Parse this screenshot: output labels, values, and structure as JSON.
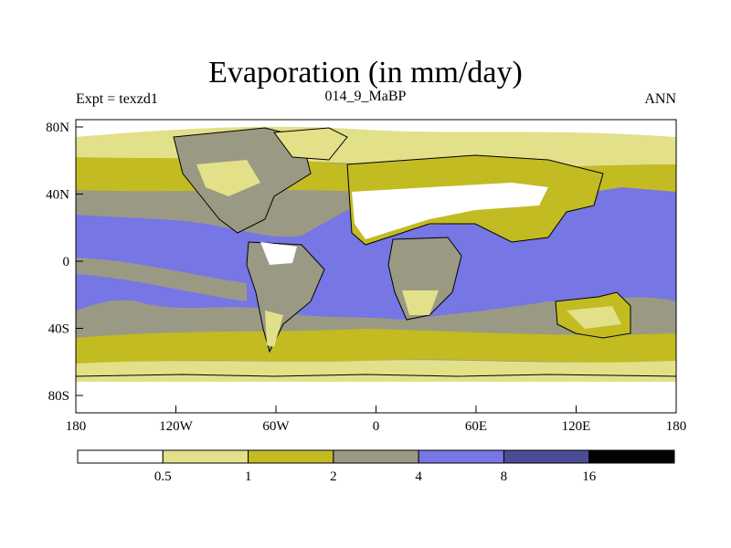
{
  "header": {
    "title": "Evaporation (in mm/day)",
    "left_label": "Expt = texzd1",
    "center_label": "014_9_MaBP",
    "right_label": "ANN"
  },
  "axes": {
    "y_ticks": [
      "80N",
      "40N",
      "0",
      "40S",
      "80S"
    ],
    "x_ticks": [
      "180",
      "120W",
      "60W",
      "0",
      "60E",
      "120E",
      "180"
    ]
  },
  "colorbar": {
    "colors": [
      "#ffffff",
      "#e3e08a",
      "#c2bb22",
      "#9a9a84",
      "#7676e4",
      "#4c4c96",
      "#000000"
    ],
    "labels": [
      "0.5",
      "1",
      "2",
      "4",
      "8",
      "16"
    ]
  }
}
